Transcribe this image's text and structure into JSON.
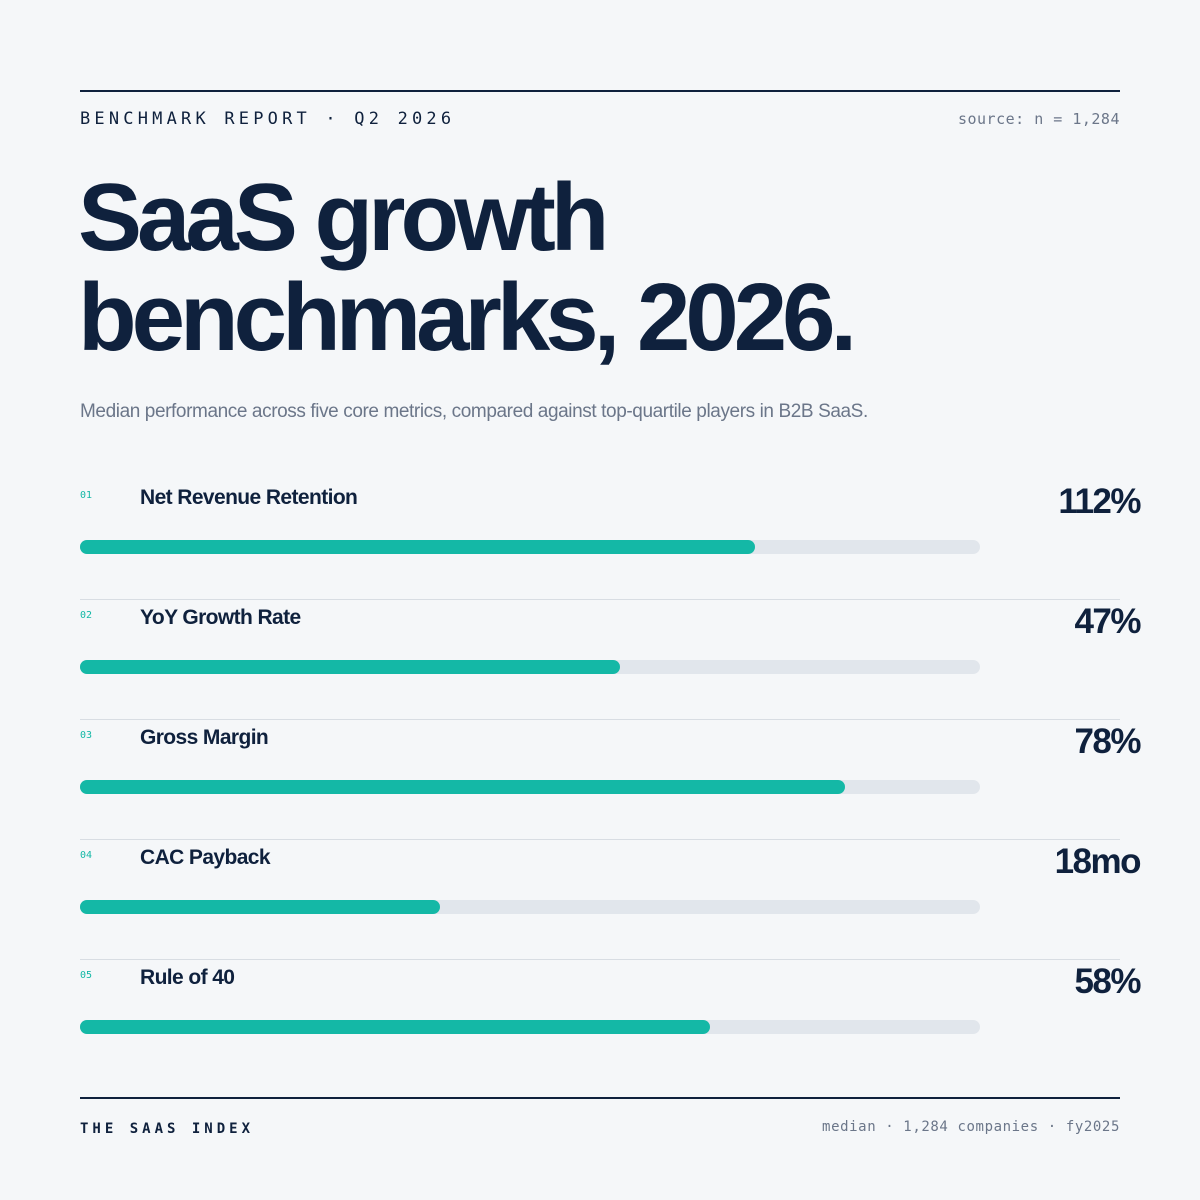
{
  "header": {
    "kicker": "BENCHMARK REPORT · Q2 2026",
    "source": "source: n = 1,284"
  },
  "title_line1": "SaaS growth",
  "title_line2": "benchmarks, 2026.",
  "subtitle": "Median performance across five core metrics, compared against top-quartile players in B2B SaaS.",
  "colors": {
    "accent": "#14b8a6",
    "track": "#e1e6ec",
    "text": "#0f213d",
    "muted": "#6b7689",
    "background": "#f5f7f9"
  },
  "chart_data": {
    "type": "bar",
    "orientation": "horizontal",
    "categories": [
      "Net Revenue Retention",
      "YoY Growth Rate",
      "Gross Margin",
      "CAC Payback",
      "Rule of 40"
    ],
    "indices": [
      "01",
      "02",
      "03",
      "04",
      "05"
    ],
    "value_labels": [
      "112%",
      "47%",
      "78%",
      "18mo",
      "58%"
    ],
    "bar_fill_percent": [
      75,
      60,
      85,
      40,
      70
    ],
    "xlim": [
      0,
      100
    ],
    "grid": false
  },
  "footer": {
    "brand": "THE SAAS INDEX",
    "note": "median · 1,284 companies · fy2025"
  }
}
